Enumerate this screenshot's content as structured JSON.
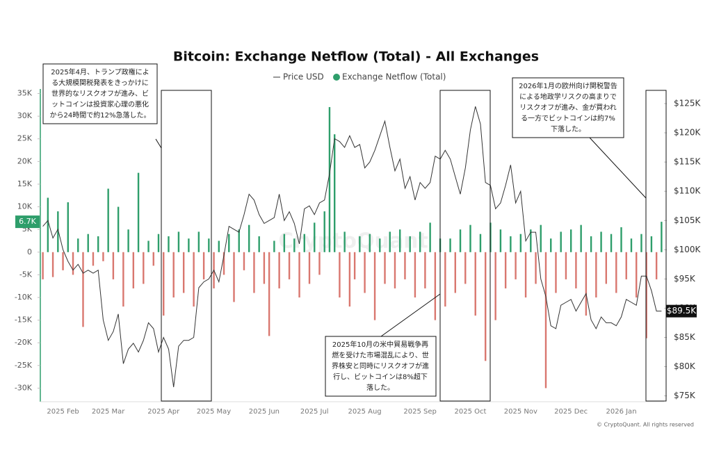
{
  "chart_data": {
    "type": "bar-line",
    "title": "Bitcoin: Exchange Netflow (Total) - All Exchanges",
    "watermark": "CryptoQuant",
    "footer": "© CryptoQuant. All rights reserved",
    "categories": [
      null,
      null,
      null,
      null,
      "2025 Feb",
      null,
      null,
      null,
      null,
      null,
      null,
      null,
      null,
      "2025 Mar",
      null,
      null,
      null,
      null,
      null,
      null,
      null,
      null,
      null,
      null,
      "2025 Apr",
      null,
      null,
      null,
      null,
      null,
      null,
      null,
      null,
      null,
      "2025 May",
      null,
      null,
      null,
      null,
      null,
      null,
      null,
      null,
      null,
      "2025 Jun",
      null,
      null,
      null,
      null,
      null,
      null,
      null,
      null,
      null,
      "2025 Jul",
      null,
      null,
      null,
      null,
      null,
      null,
      null,
      null,
      null,
      "2025 Aug",
      null,
      null,
      null,
      null,
      null,
      null,
      null,
      null,
      null,
      null,
      "2025 Sep",
      null,
      null,
      null,
      null,
      null,
      null,
      null,
      null,
      null,
      "2025 Oct",
      null,
      null,
      null,
      null,
      null,
      null,
      null,
      null,
      null,
      "2025 Nov",
      null,
      null,
      null,
      null,
      null,
      null,
      null,
      null,
      null,
      "2025 Dec",
      null,
      null,
      null,
      null,
      null,
      null,
      null,
      null,
      null,
      "2026 Jan",
      null,
      null,
      null,
      null,
      null,
      null,
      null,
      null
    ],
    "series": [
      {
        "name": "Exchange Netflow (Total)",
        "color": "#2e9e6b",
        "negative_color": "#d9776f",
        "current_label": "6.7K",
        "values": [
          -6000,
          12000,
          -5500,
          9000,
          -4000,
          11000,
          -5000,
          3000,
          -16500,
          4000,
          -3000,
          3500,
          -2000,
          14000,
          -6000,
          10000,
          -12000,
          5000,
          -8000,
          17500,
          -7000,
          2500,
          -3000,
          4000,
          -14000,
          3500,
          -10000,
          4500,
          -9000,
          3000,
          -12000,
          4500,
          -6000,
          3000,
          -8000,
          2500,
          -5000,
          4000,
          -11000,
          5000,
          -4000,
          6000,
          -9000,
          3500,
          -7000,
          -18500,
          2500,
          -8000,
          4000,
          -6000,
          3000,
          -10000,
          4000,
          -7000,
          6500,
          -5000,
          9000,
          32000,
          26000,
          -10000,
          4500,
          -12000,
          -6000,
          3500,
          -9000,
          4000,
          -15000,
          3000,
          -7000,
          4500,
          -8000,
          5000,
          -6000,
          3500,
          -10000,
          4500,
          -8000,
          6500,
          -15000,
          3000,
          -12000,
          3000,
          -9000,
          5000,
          -7000,
          6000,
          -14000,
          4000,
          -24000,
          6500,
          -15000,
          5000,
          -8000,
          3500,
          -6000,
          4000,
          -10000,
          5000,
          -7000,
          6000,
          -30000,
          3000,
          -9000,
          4500,
          -6000,
          5000,
          -8000,
          6000,
          -14000,
          3500,
          -10000,
          4500,
          -7000,
          4000,
          -9000,
          5500,
          -6000,
          3000,
          -10000,
          4000,
          -19000,
          3500,
          -6000,
          6700
        ]
      },
      {
        "name": "Price USD",
        "color": "#333333",
        "axis": "y2",
        "current_label": "$89.5K",
        "values": [
          104000,
          105000,
          102000,
          103500,
          100000,
          98000,
          96500,
          97500,
          96000,
          96500,
          96000,
          96500,
          88000,
          84500,
          86000,
          89000,
          80500,
          83000,
          84000,
          82500,
          84500,
          87500,
          86500,
          82500,
          85000,
          83000,
          76500,
          83500,
          84500,
          84500,
          85000,
          93500,
          94500,
          95000,
          96500,
          94500,
          99000,
          104000,
          103500,
          103000,
          106000,
          109500,
          108500,
          106000,
          104500,
          105000,
          105500,
          109500,
          105000,
          106500,
          104500,
          101000,
          107000,
          107500,
          106000,
          108000,
          108500,
          113000,
          119000,
          118500,
          117500,
          119500,
          117500,
          118000,
          114000,
          115000,
          117000,
          119500,
          122000,
          117500,
          113500,
          115500,
          110500,
          112500,
          108500,
          111500,
          110500,
          111500,
          116000,
          115500,
          117000,
          115500,
          112500,
          109500,
          114000,
          120500,
          124500,
          121500,
          111500,
          111000,
          107000,
          108000,
          111000,
          114500,
          108000,
          110000,
          101500,
          103000,
          103000,
          95000,
          92000,
          87000,
          86500,
          90500,
          91000,
          91500,
          89500,
          91000,
          92500,
          88000,
          86500,
          88500,
          87500,
          87500,
          87000,
          88500,
          91500,
          91000,
          90500,
          95500,
          95500,
          93000,
          89500,
          89500
        ]
      }
    ],
    "ylim": [
      -33000,
      36000
    ],
    "yticks": [
      {
        "value": 35000,
        "label": "35K"
      },
      {
        "value": 30000,
        "label": "30K"
      },
      {
        "value": 25000,
        "label": "25K"
      },
      {
        "value": 20000,
        "label": "20K"
      },
      {
        "value": 15000,
        "label": "15K"
      },
      {
        "value": 10000,
        "label": "10K"
      },
      {
        "value": 5000,
        "label": "5K"
      },
      0,
      {
        "value": -5000,
        "label": "-5K"
      },
      {
        "value": -10000,
        "label": "-10K"
      },
      {
        "value": -15000,
        "label": "-15K"
      },
      {
        "value": -20000,
        "label": "-20K"
      },
      {
        "value": -25000,
        "label": "-25K"
      },
      {
        "value": -30000,
        "label": "-30K"
      }
    ],
    "y2lim": [
      74000,
      127500
    ],
    "y2ticks": [
      {
        "value": 125000,
        "label": "$125K"
      },
      {
        "value": 120000,
        "label": "$120K"
      },
      {
        "value": 115000,
        "label": "$115K"
      },
      {
        "value": 110000,
        "label": "$110K"
      },
      {
        "value": 105000,
        "label": "$105K"
      },
      {
        "value": 100000,
        "label": "$100K"
      },
      {
        "value": 95000,
        "label": "$95K"
      },
      {
        "value": 90000,
        "label": "$90K"
      },
      {
        "value": 85000,
        "label": "$85K"
      },
      {
        "value": 80000,
        "label": "$80K"
      },
      {
        "value": 75000,
        "label": "$75K"
      }
    ],
    "grid": false,
    "legend": "top",
    "annotations": [
      {
        "lines": [
          "2025年4月、トランプ政権によ",
          "る大規模関税発表をきっかけに",
          "世界的なリスクオフが進み、ビ",
          "ットコインは投資家心理の悪化",
          "から24時間で約12%急落した。"
        ]
      },
      {
        "lines": [
          "2026年1月の欧州向け関税警告",
          "による地政学リスクの高まりで",
          "リスクオフが進み、金が買われ",
          "る一方でビットコインは約7%",
          "下落した。"
        ]
      },
      {
        "lines": [
          "2025年10月の米中貿易戦争再",
          "燃を受けた市場混乱により、世",
          "界株安と同時にリスクオフが進",
          "行し、ビットコインは8%超下",
          "落した。"
        ]
      }
    ]
  }
}
